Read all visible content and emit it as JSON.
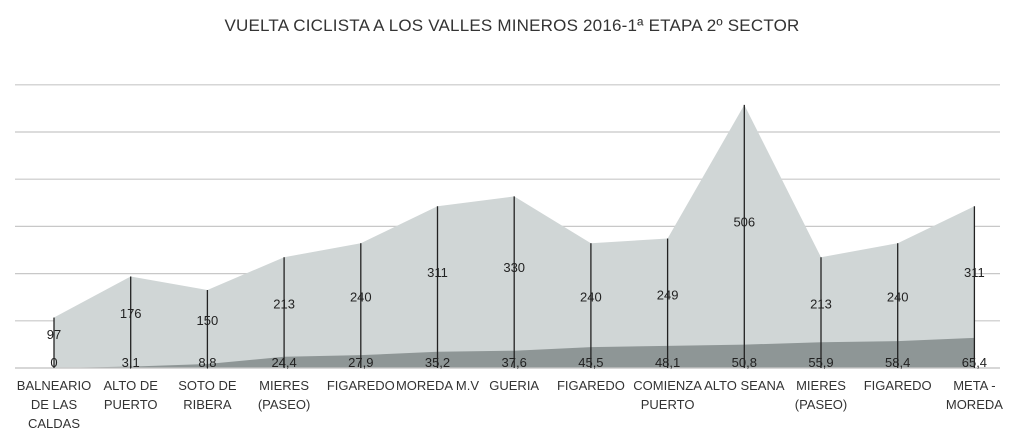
{
  "chart_data": {
    "type": "area",
    "title": "VUELTA CICLISTA A LOS VALLES MINEROS 2016-1ª ETAPA  2º SECTOR",
    "categories": [
      "BALNEARIO DE LAS CALDAS",
      "ALTO DE PUERTO",
      "SOTO DE RIBERA",
      "MIERES (PASEO)",
      "FIGAREDO",
      "MOREDA M.V",
      "GUERIA",
      "FIGAREDO",
      "COMIENZA PUERTO",
      "ALTO SEANA",
      "MIERES (PASEO)",
      "FIGAREDO",
      "META - MOREDA"
    ],
    "series": [
      {
        "values": [
          97,
          176,
          150,
          213,
          240,
          311,
          330,
          240,
          249,
          506,
          213,
          240,
          311
        ],
        "color": "#d0d6d6"
      },
      {
        "values": [
          0,
          3.1,
          8.8,
          24.4,
          27.9,
          35.2,
          37.6,
          45.5,
          48.1,
          50.8,
          55.9,
          58.4,
          65.4
        ],
        "color": "#8e9696"
      }
    ],
    "altitude_labels": [
      "97",
      "176",
      "150",
      "213",
      "240",
      "311",
      "330",
      "240",
      "249",
      "506",
      "213",
      "240",
      "311"
    ],
    "distance_labels": [
      "0",
      "3,1",
      "8,8",
      "24,4",
      "27,9",
      "35,2",
      "37,6",
      "45,5",
      "48,1",
      "50,8",
      "55,9",
      "58,4",
      "65,4"
    ],
    "grid": true
  }
}
